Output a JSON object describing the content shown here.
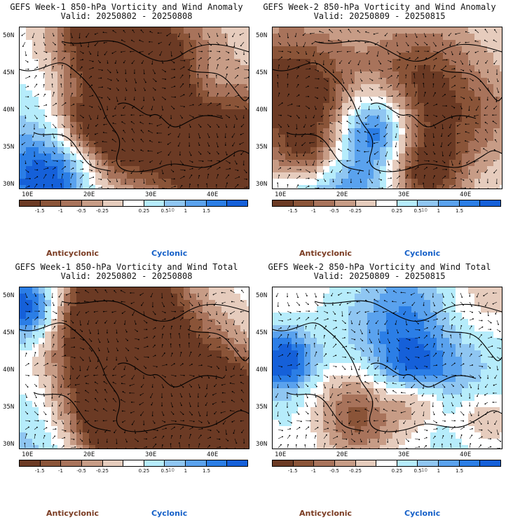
{
  "panels": [
    {
      "title1": "GEFS Week-1 850-hPa Vorticity and Wind Anomaly",
      "title2": "Valid: 20250802 - 20250808",
      "seed": 3
    },
    {
      "title1": "GEFS Week-2 850-hPa Vorticity and Wind Anomaly",
      "title2": "Valid: 20250809 - 20250815",
      "seed": 11
    },
    {
      "title1": "GEFS Week-1 850-hPa Vorticity and Wind Total",
      "title2": "Valid: 20250802 - 20250808",
      "seed": 23
    },
    {
      "title1": "GEFS Week-2 850-hPa Vorticity and Wind Total",
      "title2": "Valid: 20250809 - 20250815",
      "seed": 41
    }
  ],
  "axes": {
    "lat_labels": [
      "50N",
      "45N",
      "40N",
      "35N",
      "30N"
    ],
    "lon_labels": [
      "10E",
      "20E",
      "30E",
      "40E"
    ]
  },
  "colorbar": {
    "labels": [
      "-1.5",
      "-1",
      "-0.5",
      "-0.25",
      "0.25",
      "0.5",
      "1",
      "1.5"
    ],
    "colors": [
      "#6b3a24",
      "#8a5438",
      "#a8735b",
      "#c79c86",
      "#e6ccbd",
      "#ffffff",
      "#b6ecfb",
      "#8fc6f2",
      "#5aa2ee",
      "#2b7ee6",
      "#1560d9"
    ],
    "scale_note": "10"
  },
  "legend": {
    "anticyclonic": "Anticyclonic",
    "cyclonic": "Cyclonic"
  }
}
